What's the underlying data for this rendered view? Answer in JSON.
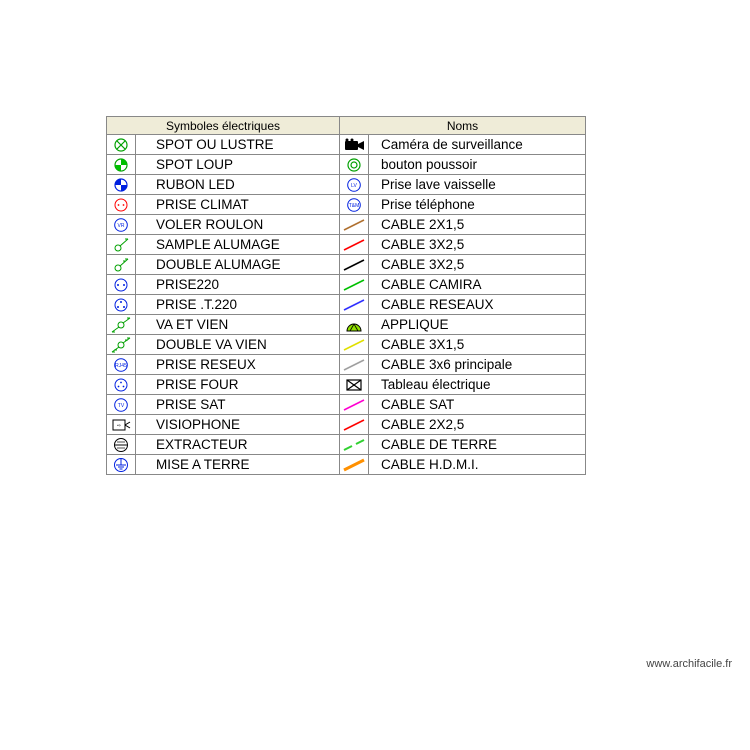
{
  "type": "table",
  "title_left": "Symboles électriques",
  "title_right": "Noms",
  "watermark": "www.archifacile.fr",
  "colors": {
    "header_bg": "#efecd8",
    "border": "#888888",
    "black": "#000000",
    "green": "#00a000",
    "green_fill": "#00c000",
    "blue": "#0020e0",
    "red": "#ff0000",
    "appl_green": "#90e000",
    "orange": "#ff9000",
    "magenta": "#ff00d0",
    "gray_line": "#a0a0a0",
    "brown": "#b07030"
  },
  "left": [
    {
      "label": "SPOT OU LUSTRE",
      "icon": "circle-x",
      "stroke": "#00a000"
    },
    {
      "label": "SPOT LOUP",
      "icon": "spot-loup",
      "stroke": "#00a000",
      "fill": "#00c000"
    },
    {
      "label": "RUBON LED",
      "icon": "rubon",
      "stroke": "#0020e0",
      "fill": "#0020e0"
    },
    {
      "label": "PRISE CLIMAT",
      "icon": "circle-dots",
      "stroke": "#ff0000"
    },
    {
      "label": "VOLER ROULON",
      "icon": "circle-text",
      "stroke": "#0020e0",
      "text": "VR"
    },
    {
      "label": "SAMPLE ALUMAGE",
      "icon": "switch1",
      "stroke": "#00a000"
    },
    {
      "label": "DOUBLE ALUMAGE",
      "icon": "switch2",
      "stroke": "#00a000"
    },
    {
      "label": "PRISE220",
      "icon": "socket2",
      "stroke": "#0020e0"
    },
    {
      "label": "PRISE .T.220",
      "icon": "socket3",
      "stroke": "#0020e0"
    },
    {
      "label": "VA ET VIEN",
      "icon": "vavien1",
      "stroke": "#00a000"
    },
    {
      "label": "DOUBLE VA VIEN",
      "icon": "vavien2",
      "stroke": "#00a000"
    },
    {
      "label": "PRISE RESEUX",
      "icon": "circle-text",
      "stroke": "#0020e0",
      "text": "RJ45"
    },
    {
      "label": "PRISE FOUR",
      "icon": "circle-dots3",
      "stroke": "#0020e0"
    },
    {
      "label": "PRISE SAT",
      "icon": "circle-text",
      "stroke": "#0020e0",
      "text": "TV"
    },
    {
      "label": "VISIOPHONE",
      "icon": "visiophone",
      "stroke": "#000000"
    },
    {
      "label": "EXTRACTEUR",
      "icon": "extractor",
      "stroke": "#000000"
    },
    {
      "label": "MISE A TERRE",
      "icon": "ground",
      "stroke": "#0020e0"
    }
  ],
  "right": [
    {
      "label": "Caméra de surveillance",
      "icon": "camera",
      "stroke": "#000000",
      "fill": "#000000"
    },
    {
      "label": "bouton poussoir",
      "icon": "double-circle",
      "stroke": "#00a000"
    },
    {
      "label": "Prise lave vaisselle",
      "icon": "circle-text",
      "stroke": "#0020e0",
      "text": "LV"
    },
    {
      "label": "Prise téléphone",
      "icon": "circle-text",
      "stroke": "#0020e0",
      "text": "T&M"
    },
    {
      "label": "CABLE 2X1,5",
      "icon": "line",
      "stroke": "#b07030"
    },
    {
      "label": "CABLE 3X2,5",
      "icon": "line",
      "stroke": "#ff0000"
    },
    {
      "label": "CABLE 3X2,5",
      "icon": "line",
      "stroke": "#000000"
    },
    {
      "label": "CABLE CAMIRA",
      "icon": "line",
      "stroke": "#00c000"
    },
    {
      "label": "CABLE RESEAUX",
      "icon": "line",
      "stroke": "#3030ff"
    },
    {
      "label": "APPLIQUE",
      "icon": "applique",
      "stroke": "#000000",
      "fill": "#90e000"
    },
    {
      "label": "CABLE 3X1,5",
      "icon": "line",
      "stroke": "#e0e000"
    },
    {
      "label": "CABLE 3x6 principale",
      "icon": "line",
      "stroke": "#a0a0a0"
    },
    {
      "label": "Tableau électrique",
      "icon": "rect-x",
      "stroke": "#000000"
    },
    {
      "label": "CABLE SAT",
      "icon": "line",
      "stroke": "#ff00d0"
    },
    {
      "label": "CABLE 2X2,5",
      "icon": "line",
      "stroke": "#ff0000"
    },
    {
      "label": "CABLE DE TERRE",
      "icon": "dash2",
      "stroke": "#30d030"
    },
    {
      "label": "CABLE H.D.M.I.",
      "icon": "line-thick",
      "stroke": "#ff9000"
    }
  ]
}
